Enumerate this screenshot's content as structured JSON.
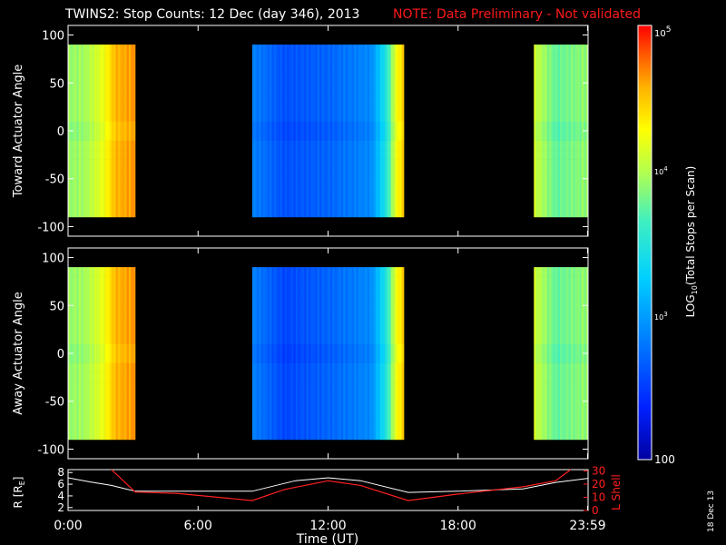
{
  "title": {
    "main": "TWINS2: Stop Counts: 12 Dec (day 346), 2013",
    "note": "NOTE: Data Preliminary - Not validated"
  },
  "colors": {
    "background": "#000000",
    "axes": "#ffffff",
    "note": "#ff1a1a",
    "lshell": "#ff2020",
    "radius": "#ffffff"
  },
  "chart_data": [
    {
      "type": "heatmap",
      "name": "toward",
      "ylabel": "Toward Actuator Angle",
      "ylim": [
        -110,
        110
      ],
      "yticks": [
        -100,
        -50,
        0,
        50,
        100
      ],
      "xlim_hours": [
        0,
        24
      ],
      "data_ylim": [
        -90,
        90
      ],
      "coverage_hours": [
        [
          0.0,
          3.1
        ],
        [
          8.5,
          15.5
        ],
        [
          21.5,
          24.0
        ]
      ],
      "log10_counts_profile": [
        {
          "t": 0.0,
          "v": 3.9
        },
        {
          "t": 0.8,
          "v": 3.95
        },
        {
          "t": 1.6,
          "v": 4.2
        },
        {
          "t": 2.2,
          "v": 4.55
        },
        {
          "t": 3.1,
          "v": 4.65
        },
        {
          "t": 8.5,
          "v": 2.85
        },
        {
          "t": 10.0,
          "v": 2.6
        },
        {
          "t": 12.0,
          "v": 2.7
        },
        {
          "t": 14.0,
          "v": 2.9
        },
        {
          "t": 14.7,
          "v": 3.5
        },
        {
          "t": 15.2,
          "v": 4.3
        },
        {
          "t": 15.5,
          "v": 4.45
        },
        {
          "t": 21.5,
          "v": 4.1
        },
        {
          "t": 22.5,
          "v": 3.75
        },
        {
          "t": 24.0,
          "v": 3.9
        }
      ]
    },
    {
      "type": "heatmap",
      "name": "away",
      "ylabel": "Away Actuator Angle",
      "ylim": [
        -110,
        110
      ],
      "yticks": [
        -100,
        -50,
        0,
        50,
        100
      ],
      "xlim_hours": [
        0,
        24
      ],
      "data_ylim": [
        -90,
        90
      ],
      "coverage_hours": [
        [
          0.0,
          3.1
        ],
        [
          8.5,
          15.5
        ],
        [
          21.5,
          24.0
        ]
      ],
      "log10_counts_profile": [
        {
          "t": 0.0,
          "v": 3.9
        },
        {
          "t": 0.8,
          "v": 3.95
        },
        {
          "t": 1.6,
          "v": 4.2
        },
        {
          "t": 2.2,
          "v": 4.55
        },
        {
          "t": 3.1,
          "v": 4.65
        },
        {
          "t": 8.5,
          "v": 2.85
        },
        {
          "t": 10.0,
          "v": 2.55
        },
        {
          "t": 12.0,
          "v": 2.7
        },
        {
          "t": 14.0,
          "v": 2.9
        },
        {
          "t": 14.7,
          "v": 3.5
        },
        {
          "t": 15.2,
          "v": 4.3
        },
        {
          "t": 15.5,
          "v": 4.45
        },
        {
          "t": 21.5,
          "v": 4.1
        },
        {
          "t": 22.5,
          "v": 3.75
        },
        {
          "t": 24.0,
          "v": 3.9
        }
      ]
    },
    {
      "type": "line",
      "name": "orbit",
      "ylabel_left": "R [R",
      "ylabel_left_sub": "E",
      "ylabel_left_end": "]",
      "ylabel_right": "L Shell",
      "ylim_left": [
        1.5,
        8.5
      ],
      "yticks_left": [
        2,
        4,
        6,
        8
      ],
      "ylim_right": [
        0,
        31
      ],
      "yticks_right": [
        0,
        10,
        20,
        30
      ],
      "xlabel": "Time (UT)",
      "xticks": [
        {
          "h": 0,
          "label": "0:00"
        },
        {
          "h": 6,
          "label": "6:00"
        },
        {
          "h": 12,
          "label": "12:00"
        },
        {
          "h": 18,
          "label": "18:00"
        },
        {
          "h": 23.98,
          "label": "23:59"
        }
      ],
      "series": [
        {
          "name": "R",
          "axis": "left",
          "points": [
            [
              0.0,
              7.1
            ],
            [
              1.0,
              6.4
            ],
            [
              2.0,
              5.8
            ],
            [
              3.1,
              4.8
            ],
            [
              5.0,
              4.8
            ],
            [
              8.5,
              4.8
            ],
            [
              10.5,
              6.6
            ],
            [
              12.0,
              7.1
            ],
            [
              13.5,
              6.6
            ],
            [
              15.7,
              4.6
            ],
            [
              18.0,
              4.8
            ],
            [
              21.0,
              5.2
            ],
            [
              22.5,
              6.3
            ],
            [
              24.0,
              7.0
            ]
          ]
        },
        {
          "name": "L Shell",
          "axis": "right",
          "points": [
            [
              2.0,
              32.0
            ],
            [
              3.1,
              14.0
            ],
            [
              5.0,
              13.0
            ],
            [
              8.5,
              7.5
            ],
            [
              10.0,
              16.0
            ],
            [
              12.0,
              22.5
            ],
            [
              13.5,
              19.0
            ],
            [
              15.7,
              7.5
            ],
            [
              18.0,
              12.5
            ],
            [
              21.0,
              18.0
            ],
            [
              22.5,
              22.5
            ],
            [
              23.2,
              32.0
            ]
          ]
        }
      ]
    }
  ],
  "colorbar": {
    "label_prefix": "LOG",
    "label_sub": "10",
    "label_suffix": "(Total Stops per Scan)",
    "top": {
      "base": "10",
      "exp": "5"
    },
    "mid1": {
      "base": "10",
      "exp": "4"
    },
    "mid2": {
      "base": "10",
      "exp": "3"
    },
    "bottom_label": "100",
    "range_log10": [
      2,
      5
    ]
  },
  "footer": {
    "date_stamp": "18 Dec 13"
  }
}
